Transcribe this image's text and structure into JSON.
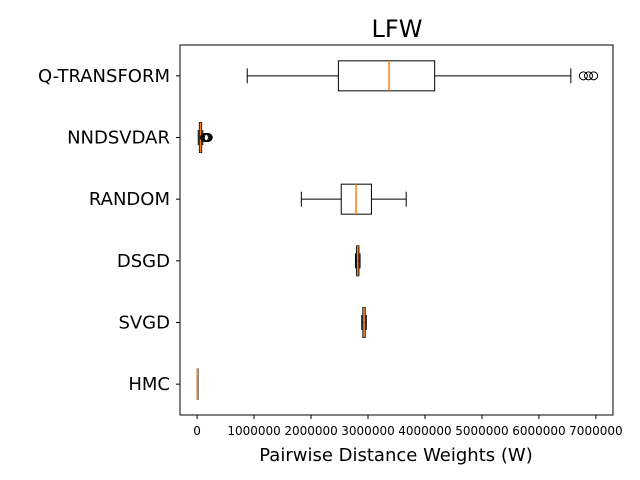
{
  "chart_data": {
    "type": "boxplot",
    "orientation": "horizontal",
    "title": "LFW",
    "xlabel": "Pairwise Distance Weights (W)",
    "ylabel": "",
    "xlim": [
      -300000,
      7300000
    ],
    "xticks": [
      0,
      1000000,
      2000000,
      3000000,
      4000000,
      5000000,
      6000000,
      7000000
    ],
    "xtick_labels": [
      "0",
      "1000000",
      "2000000",
      "3000000",
      "4000000",
      "5000000",
      "6000000",
      "7000000"
    ],
    "grid": false,
    "colors": {
      "box": "#000000",
      "median": "#ff7f0e",
      "background": "#ffffff"
    },
    "categories": [
      "Q-TRANSFORM",
      "NNDSVDAR",
      "RANDOM",
      "DSGD",
      "SVGD",
      "HMC"
    ],
    "boxes": [
      {
        "label": "Q-TRANSFORM",
        "whislo": 880000,
        "q1": 2480000,
        "med": 3370000,
        "q3": 4170000,
        "whishi": 6560000,
        "fliers": [
          6780000,
          6870000,
          6960000
        ]
      },
      {
        "label": "NNDSVDAR",
        "whislo": 20000,
        "q1": 40000,
        "med": 60000,
        "q3": 80000,
        "whishi": 100000,
        "fliers": [
          130000,
          150000,
          165000,
          180000,
          195000
        ]
      },
      {
        "label": "RANDOM",
        "whislo": 1830000,
        "q1": 2530000,
        "med": 2790000,
        "q3": 3060000,
        "whishi": 3670000,
        "fliers": []
      },
      {
        "label": "DSGD",
        "whislo": 2780000,
        "q1": 2800000,
        "med": 2820000,
        "q3": 2840000,
        "whishi": 2860000,
        "fliers": []
      },
      {
        "label": "SVGD",
        "whislo": 2890000,
        "q1": 2910000,
        "med": 2930000,
        "q3": 2950000,
        "whishi": 2970000,
        "fliers": []
      },
      {
        "label": "HMC",
        "whislo": 0,
        "q1": 2000,
        "med": 4000,
        "q3": 6000,
        "whishi": 8000,
        "fliers": []
      }
    ]
  }
}
